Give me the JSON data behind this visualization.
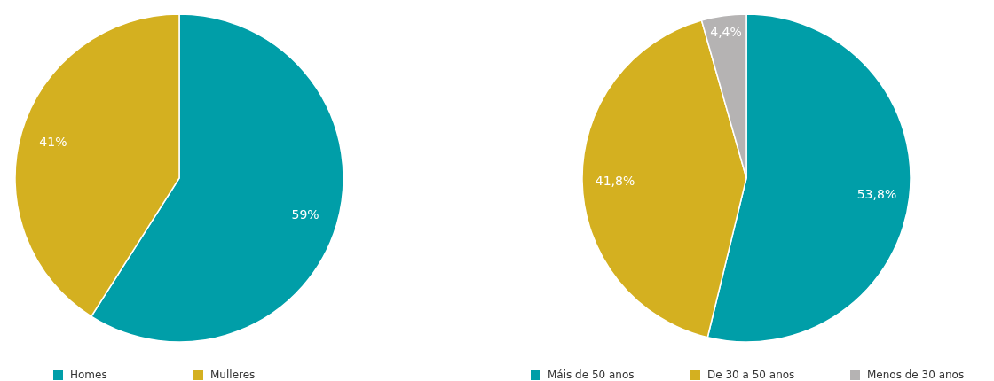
{
  "chart_data": [
    {
      "type": "pie",
      "categories": [
        "Homes",
        "Mulleres"
      ],
      "values": [
        59,
        41
      ],
      "colors": [
        "#009ea8",
        "#d4b020"
      ],
      "value_labels": [
        "59%",
        "41%"
      ],
      "legend": "bottom"
    },
    {
      "type": "pie",
      "categories": [
        "Máis de 50 anos",
        "De 30 a 50 anos",
        "Menos de 30 anos"
      ],
      "values": [
        53.8,
        41.8,
        4.4
      ],
      "colors": [
        "#009ea8",
        "#d4b020",
        "#b5b3b3"
      ],
      "value_labels": [
        "53,8%",
        "41,8%",
        "4,4%"
      ],
      "legend": "bottom"
    }
  ]
}
